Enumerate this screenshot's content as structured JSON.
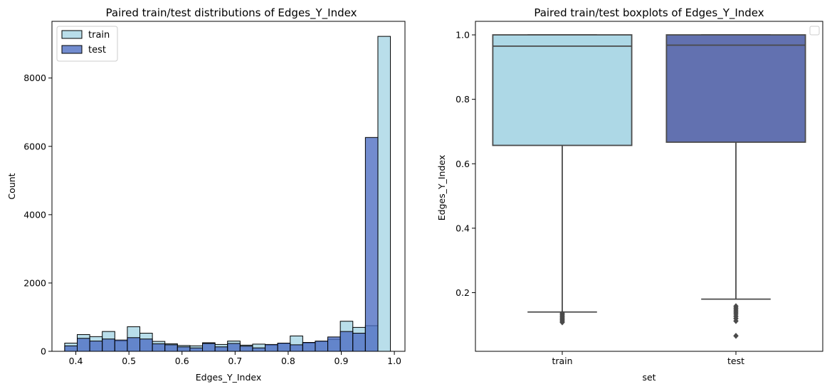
{
  "chart_data": [
    {
      "type": "histogram",
      "title": "Paired train/test distributions of Edges_Y_Index",
      "xlabel": "Edges_Y_Index",
      "ylabel": "Count",
      "xlim": [
        0.355,
        1.02
      ],
      "ylim": [
        0,
        9660
      ],
      "xticks": [
        0.4,
        0.5,
        0.6,
        0.7,
        0.8,
        0.9,
        1.0
      ],
      "xtick_labels": [
        "0.4",
        "0.5",
        "0.6",
        "0.7",
        "0.8",
        "0.9",
        "1.0"
      ],
      "yticks": [
        0,
        2000,
        4000,
        6000,
        8000
      ],
      "ytick_labels": [
        "0",
        "2000",
        "4000",
        "6000",
        "8000"
      ],
      "legend_position": "top-left",
      "series": [
        {
          "name": "train",
          "color": "#add8e6",
          "alpha": 0.85,
          "bin_start": 0.379,
          "bin_width": 0.0236,
          "values": [
            240,
            490,
            430,
            580,
            300,
            720,
            530,
            290,
            220,
            170,
            160,
            250,
            200,
            300,
            180,
            210,
            180,
            230,
            450,
            240,
            290,
            350,
            880,
            700,
            750,
            9220
          ]
        },
        {
          "name": "test",
          "color": "#4a6bc1",
          "alpha": 0.78,
          "bin_start": 0.379,
          "bin_width": 0.0236,
          "values": [
            160,
            380,
            300,
            360,
            330,
            400,
            360,
            220,
            190,
            130,
            100,
            230,
            130,
            230,
            150,
            100,
            200,
            240,
            190,
            260,
            300,
            420,
            580,
            530,
            6260,
            0
          ]
        }
      ]
    },
    {
      "type": "boxplot",
      "title": "Paired train/test boxplots of Edges_Y_Index",
      "xlabel": "set",
      "ylabel": "Edges_Y_Index",
      "categories": [
        "train",
        "test"
      ],
      "ylim": [
        0.018,
        1.042
      ],
      "yticks": [
        0.2,
        0.4,
        0.6,
        0.8,
        1.0
      ],
      "ytick_labels": [
        "0.2",
        "0.4",
        "0.6",
        "0.8",
        "1.0"
      ],
      "legend_position": "top-right",
      "boxes": [
        {
          "name": "train",
          "color": "#add8e6",
          "q1": 0.657,
          "median": 0.965,
          "q3": 1.0,
          "whisker_low": 0.14,
          "whisker_high": 1.0,
          "outliers": [
            0.136,
            0.132,
            0.128,
            0.124,
            0.12,
            0.116,
            0.112,
            0.108
          ]
        },
        {
          "name": "test",
          "color": "#6271b0",
          "q1": 0.667,
          "median": 0.968,
          "q3": 1.0,
          "whisker_low": 0.18,
          "whisker_high": 1.0,
          "outliers": [
            0.158,
            0.152,
            0.146,
            0.14,
            0.134,
            0.127,
            0.12,
            0.112,
            0.066
          ]
        }
      ]
    }
  ]
}
